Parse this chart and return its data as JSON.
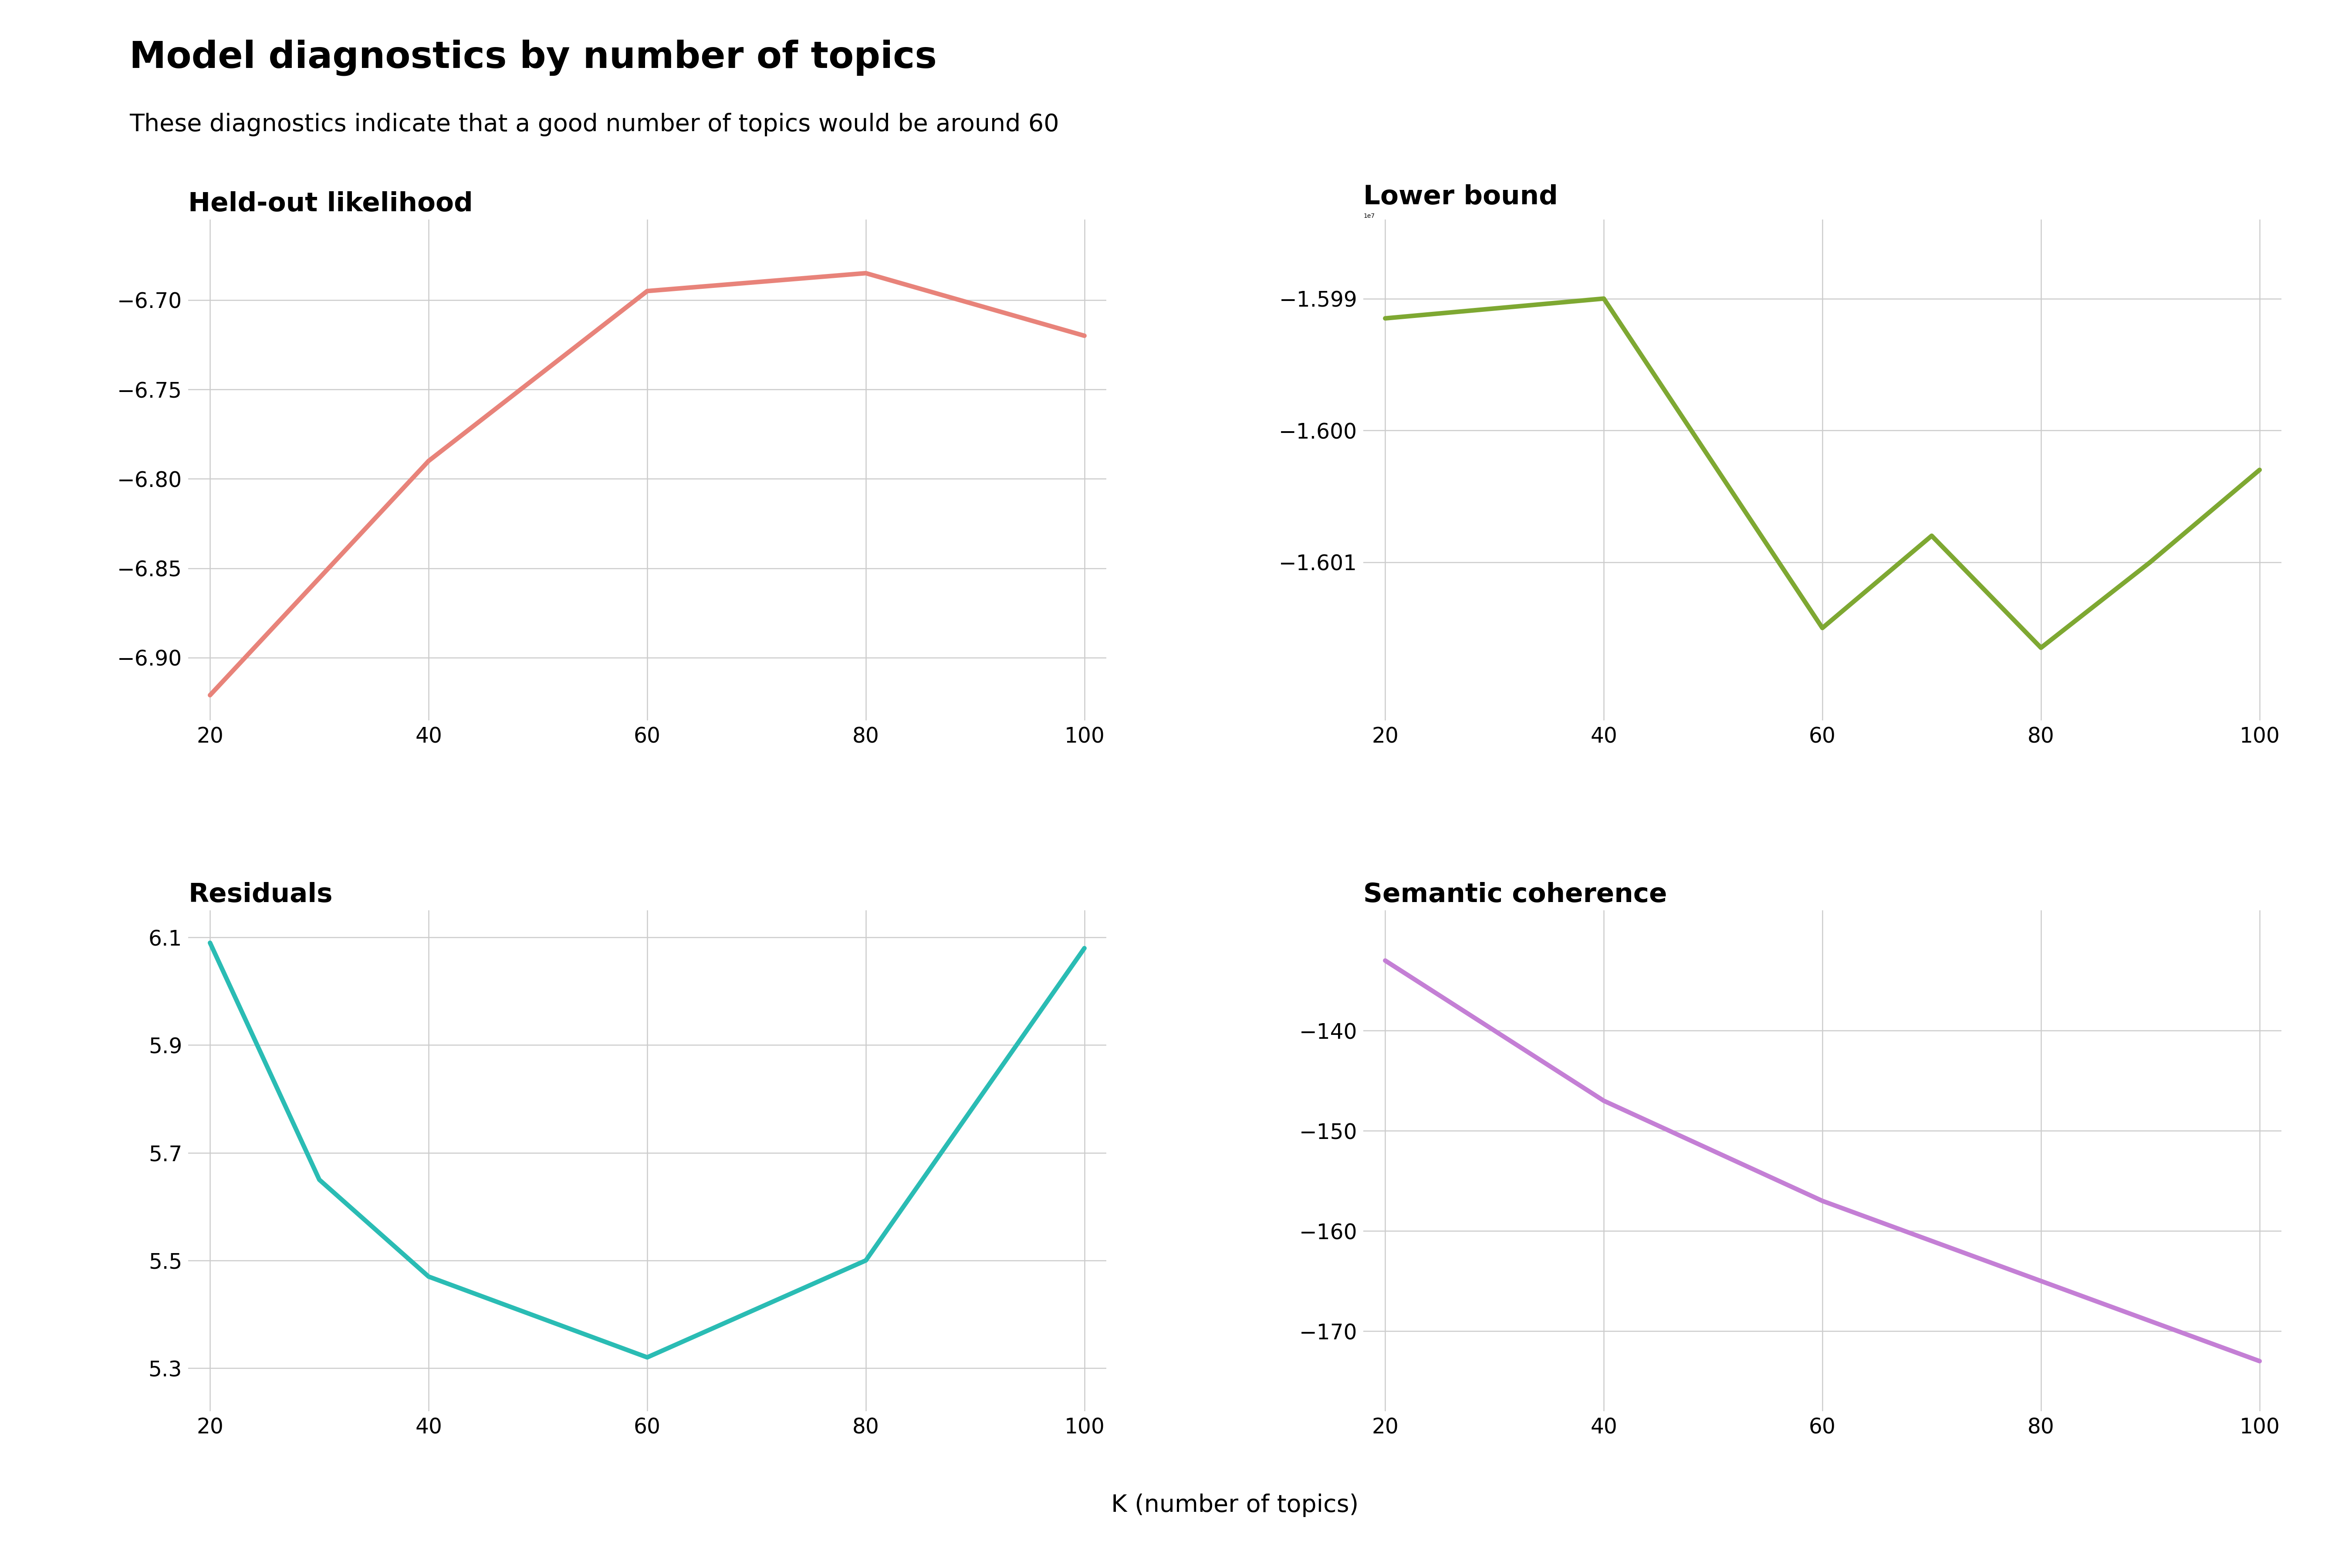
{
  "title": "Model diagnostics by number of topics",
  "subtitle": "These diagnostics indicate that a good number of topics would be around 60",
  "xlabel": "K (number of topics)",
  "x_values": [
    20,
    40,
    60,
    80,
    100
  ],
  "held_out": {
    "label": "Held-out likelihood",
    "x_values": [
      20,
      40,
      60,
      80,
      100
    ],
    "y_values": [
      -6.921,
      -6.79,
      -6.695,
      -6.685,
      -6.72
    ],
    "color": "#E8837A",
    "ylim": [
      -6.935,
      -6.655
    ],
    "yticks": [
      -6.7,
      -6.75,
      -6.8,
      -6.85,
      -6.9
    ]
  },
  "lower_bound": {
    "label": "Lower bound",
    "x_values": [
      20,
      40,
      60,
      70,
      80,
      90,
      100
    ],
    "y_values": [
      -15991500,
      -15990000,
      -16015000,
      -16008000,
      -16016500,
      -16010000,
      -16003000
    ],
    "color": "#7EA832",
    "ylim": [
      -16022000,
      -15984000
    ],
    "yticks": [
      -15990000,
      -16000000,
      -16010000
    ]
  },
  "residuals": {
    "label": "Residuals",
    "x_values": [
      20,
      30,
      40,
      60,
      80,
      100
    ],
    "y_values": [
      6.09,
      5.65,
      5.47,
      5.32,
      5.5,
      6.08
    ],
    "color": "#2ABCB4",
    "ylim": [
      5.22,
      6.15
    ],
    "yticks": [
      5.3,
      5.5,
      5.7,
      5.9,
      6.1
    ]
  },
  "semantic_coherence": {
    "label": "Semantic coherence",
    "x_values": [
      20,
      40,
      60,
      80,
      100
    ],
    "y_values": [
      -133,
      -147,
      -157,
      -165,
      -173
    ],
    "color": "#C47FD5",
    "ylim": [
      -178,
      -128
    ],
    "yticks": [
      -140,
      -150,
      -160,
      -170
    ]
  },
  "background_color": "#ffffff",
  "grid_color": "#cccccc",
  "title_fontsize": 61,
  "subtitle_fontsize": 40,
  "subplot_title_fontsize": 44,
  "tick_fontsize": 35,
  "xlabel_fontsize": 40,
  "line_width": 7.5
}
